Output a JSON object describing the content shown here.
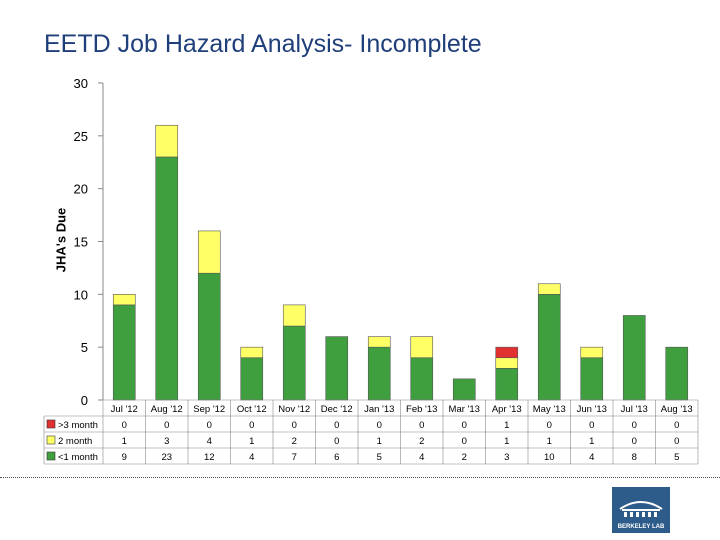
{
  "title": "EETD Job Hazard Analysis- Incomplete",
  "logo_text": "BERKELEY LAB",
  "chart_data": {
    "type": "bar",
    "stacked": true,
    "title": "EETD Job Hazard Analysis- Incomplete",
    "xlabel": "",
    "ylabel": "JHA's Due",
    "ylim": [
      0,
      30
    ],
    "yticks": [
      0,
      5,
      10,
      15,
      20,
      25,
      30
    ],
    "categories": [
      "Jul '12",
      "Aug '12",
      "Sep '12",
      "Oct '12",
      "Nov '12",
      "Dec '12",
      "Jan '13",
      "Feb '13",
      "Mar '13",
      "Apr '13",
      "May '13",
      "Jun '13",
      "Jul '13",
      "Aug '13"
    ],
    "series": [
      {
        "name": ">3 month",
        "color": "#e03030",
        "values": [
          0,
          0,
          0,
          0,
          0,
          0,
          0,
          0,
          0,
          1,
          0,
          0,
          0,
          0
        ]
      },
      {
        "name": "2 month",
        "color": "#ffff66",
        "values": [
          1,
          3,
          4,
          1,
          2,
          0,
          1,
          2,
          0,
          1,
          1,
          1,
          0,
          0
        ]
      },
      {
        "name": "<1 month",
        "color": "#3f9f3f",
        "values": [
          9,
          23,
          12,
          4,
          7,
          6,
          5,
          4,
          2,
          3,
          10,
          4,
          8,
          5
        ]
      }
    ],
    "grid": false,
    "legend": "table-below"
  }
}
